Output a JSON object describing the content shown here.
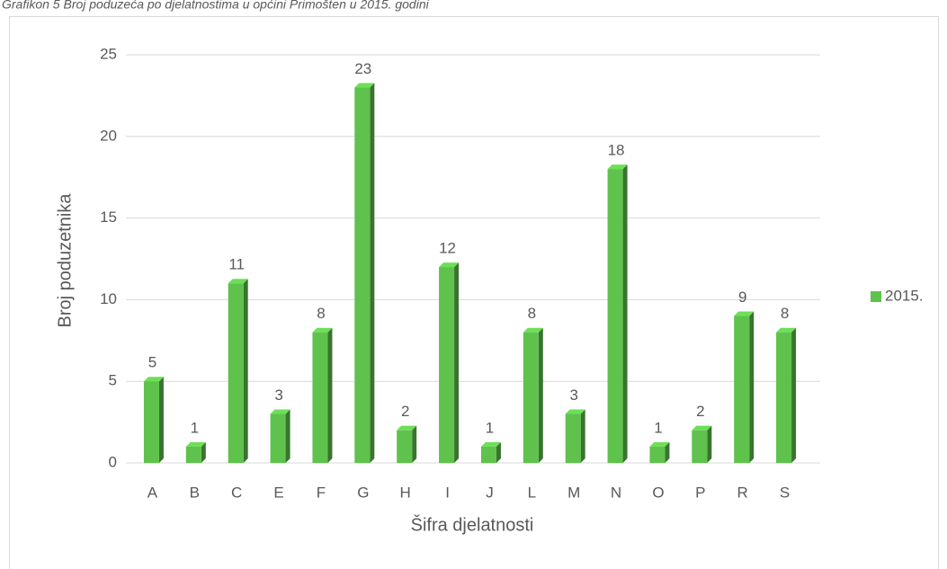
{
  "chart_data": {
    "type": "bar",
    "title": "Grafikon 5 Broj poduzeća po djelatnostima u općini Primošten u 2015. godini",
    "categories": [
      "A",
      "B",
      "C",
      "E",
      "F",
      "G",
      "H",
      "I",
      "J",
      "L",
      "M",
      "N",
      "O",
      "P",
      "R",
      "S"
    ],
    "series": [
      {
        "name": "2015.",
        "color": "#5fc24c",
        "values": [
          5,
          1,
          11,
          3,
          8,
          23,
          2,
          12,
          1,
          8,
          3,
          18,
          1,
          2,
          9,
          8
        ]
      }
    ],
    "ylim": [
      0,
      25
    ],
    "yticks": [
      0,
      5,
      10,
      15,
      20,
      25
    ],
    "xlabel": "Šifra djelatnosti",
    "ylabel": "Broj poduzetnika",
    "grid": true,
    "legend": "right"
  }
}
